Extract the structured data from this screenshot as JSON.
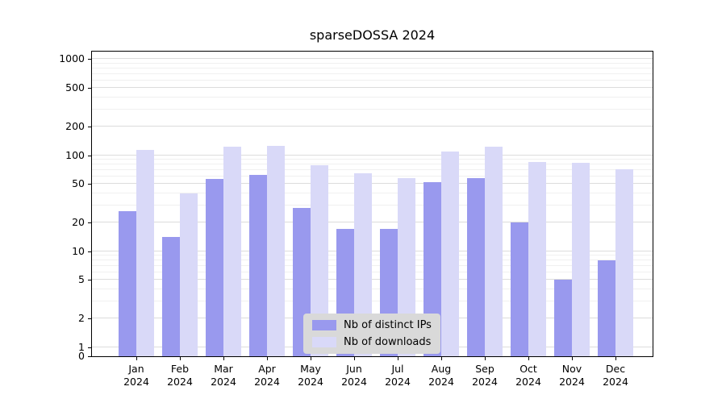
{
  "chart_data": {
    "type": "bar",
    "title": "sparseDOSSA 2024",
    "categories": [
      "Jan",
      "Feb",
      "Mar",
      "Apr",
      "May",
      "Jun",
      "Jul",
      "Aug",
      "Sep",
      "Oct",
      "Nov",
      "Dec"
    ],
    "year_label": "2024",
    "series": [
      {
        "name": "Nb of distinct IPs",
        "color": "#9999ee",
        "values": [
          26,
          14,
          57,
          62,
          28,
          17,
          17,
          52,
          58,
          20,
          5,
          8
        ]
      },
      {
        "name": "Nb of downloads",
        "color": "#d9d9f8",
        "values": [
          113,
          40,
          122,
          126,
          78,
          65,
          58,
          110,
          122,
          85,
          83,
          72
        ]
      }
    ],
    "yticks": [
      0,
      1,
      2,
      5,
      10,
      20,
      50,
      100,
      200,
      500,
      1000
    ],
    "yscale": "symlog",
    "ylim": [
      0,
      1200
    ],
    "grid": true,
    "legend_position": "lower center"
  },
  "colors": {
    "grid_major": "#dcdcdc",
    "grid_minor": "#f0f0f0",
    "axis": "#000000",
    "legend_bg": "#d9d9d9",
    "background": "#ffffff"
  }
}
